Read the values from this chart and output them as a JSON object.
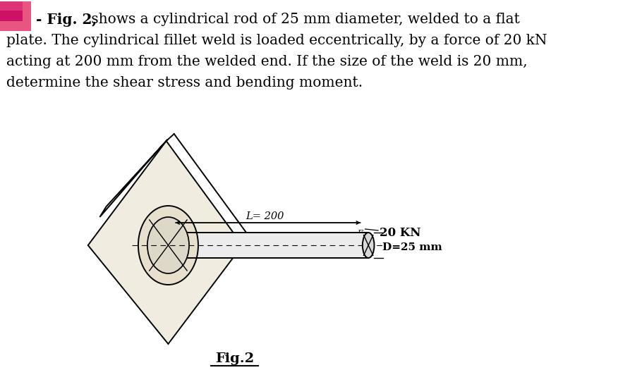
{
  "title_bold": "- Fig. 2,",
  "title_line1_rest": " shows a cylindrical rod of 25 mm diameter, welded to a flat",
  "title_line2": "plate. The cylindrical fillet weld is loaded eccentrically, by a force of 20 kN",
  "title_line3": "acting at 200 mm from the welded end. If the size of the weld is 20 mm,",
  "title_line4": "determine the shear stress and bending moment.",
  "fig_caption": "Fig.2",
  "label_L": "L= 200",
  "label_force": "20 KN",
  "label_D": "D=25 mm",
  "bg_color": "#ffffff",
  "text_color": "#000000",
  "draw_color": "#333333",
  "fig_fontsize": 14.5,
  "caption_fontsize": 14,
  "pink1": "#e8507a",
  "pink2": "#cc2255",
  "line_lw": 1.4,
  "thin_lw": 1.0,
  "plate_face": "#e8e0d0",
  "rod_face": "#e0e0e0",
  "hatch_face": "#d8d0b8"
}
